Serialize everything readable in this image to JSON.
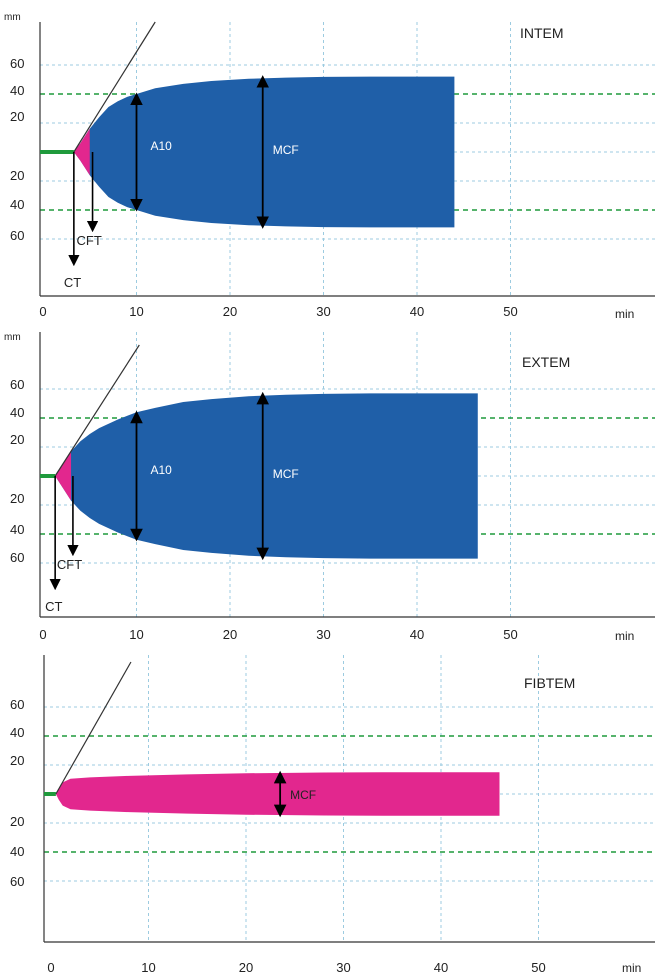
{
  "colors": {
    "trace_blue": "#1f5fa8",
    "trace_pink": "#e2278e",
    "baseline_green": "#1f9a3c",
    "dashed_green": "#1f9a3c",
    "grid_blue": "#9ccbe0",
    "arrow": "#000000"
  },
  "chart_data": [
    {
      "type": "area",
      "title": "INTEM",
      "ylabel": "mm",
      "xlabel": "min",
      "xlim": [
        0,
        55
      ],
      "x_ticks": [
        "0",
        "10",
        "20",
        "30",
        "40",
        "50"
      ],
      "y_ticks": [
        "60",
        "40",
        "20",
        "20",
        "40",
        "60"
      ],
      "y_tick_values": [
        60,
        40,
        20,
        -20,
        -40,
        -60
      ],
      "dashed_levels": [
        40,
        -40
      ],
      "ct": 3.3,
      "cft_end": 5.3,
      "a10": 40,
      "mcf": 52,
      "end_time": 44,
      "baseline_end": 3.3,
      "fill": "trace_blue",
      "trace": [
        [
          3.3,
          0
        ],
        [
          4,
          6
        ],
        [
          5,
          16
        ],
        [
          6,
          24
        ],
        [
          7,
          31
        ],
        [
          8,
          35
        ],
        [
          9,
          38
        ],
        [
          10,
          40
        ],
        [
          12,
          44
        ],
        [
          15,
          47
        ],
        [
          18,
          49
        ],
        [
          22,
          50.5
        ],
        [
          26,
          51.3
        ],
        [
          30,
          51.8
        ],
        [
          35,
          52
        ],
        [
          44,
          52
        ]
      ],
      "labels": {
        "ct": "CT",
        "cft": "CFT",
        "a10": "A10",
        "mcf": "MCF"
      }
    },
    {
      "type": "area",
      "title": "EXTEM",
      "ylabel": "mm",
      "xlabel": "min",
      "xlim": [
        0,
        55
      ],
      "x_ticks": [
        "0",
        "10",
        "20",
        "30",
        "40",
        "50"
      ],
      "y_ticks": [
        "60",
        "40",
        "20",
        "20",
        "40",
        "60"
      ],
      "y_tick_values": [
        60,
        40,
        20,
        -20,
        -40,
        -60
      ],
      "dashed_levels": [
        40,
        -40
      ],
      "ct": 1.3,
      "cft_end": 3.2,
      "a10": 44,
      "mcf": 57,
      "end_time": 46.5,
      "baseline_end": 1.3,
      "fill": "trace_blue",
      "trace": [
        [
          1.3,
          0
        ],
        [
          2,
          7
        ],
        [
          3,
          17
        ],
        [
          4,
          24
        ],
        [
          5,
          29
        ],
        [
          6,
          33
        ],
        [
          8,
          39
        ],
        [
          10,
          44
        ],
        [
          12,
          47
        ],
        [
          15,
          51
        ],
        [
          18,
          53
        ],
        [
          22,
          55
        ],
        [
          26,
          56
        ],
        [
          30,
          56.6
        ],
        [
          35,
          57
        ],
        [
          46.5,
          57
        ]
      ],
      "labels": {
        "ct": "CT",
        "cft": "CFT",
        "a10": "A10",
        "mcf": "MCF"
      }
    },
    {
      "type": "area",
      "title": "FIBTEM",
      "ylabel": "",
      "xlabel": "min",
      "xlim": [
        0,
        55
      ],
      "x_ticks": [
        "0",
        "10",
        "20",
        "30",
        "40",
        "50"
      ],
      "y_ticks": [
        "60",
        "40",
        "20",
        "20",
        "40",
        "60"
      ],
      "y_tick_values": [
        60,
        40,
        20,
        -20,
        -40,
        -60
      ],
      "dashed_levels": [
        40,
        -40
      ],
      "ct": 0.5,
      "mcf": 15,
      "end_time": 46,
      "baseline_end": 0.5,
      "fill": "trace_pink",
      "trace": [
        [
          0.5,
          0
        ],
        [
          0.8,
          4
        ],
        [
          1.2,
          8
        ],
        [
          2,
          10.5
        ],
        [
          4,
          11.5
        ],
        [
          8,
          12.5
        ],
        [
          14,
          13.5
        ],
        [
          20,
          14.3
        ],
        [
          28,
          14.8
        ],
        [
          35,
          15
        ],
        [
          46,
          15
        ]
      ],
      "labels": {
        "mcf": "MCF"
      }
    }
  ]
}
